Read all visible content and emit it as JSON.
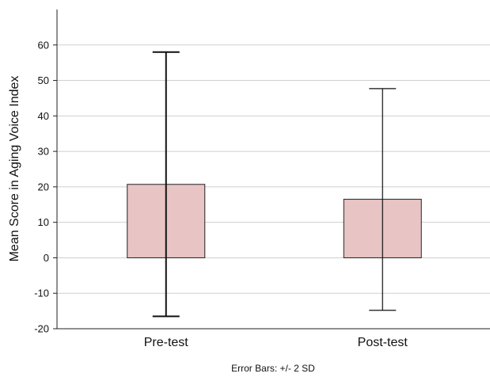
{
  "chart_data": {
    "type": "bar",
    "categories": [
      "Pre-test",
      "Post-test"
    ],
    "values": [
      20.7,
      16.5
    ],
    "error_low": [
      -16.5,
      -14.8
    ],
    "error_high": [
      58.0,
      47.7
    ],
    "ylabel": "Mean Score in Aging Voice Index",
    "xlabel": "",
    "ylim": [
      -20,
      70
    ],
    "yticks": [
      -20,
      -10,
      0,
      10,
      20,
      30,
      40,
      50,
      60
    ],
    "ytick_labels": [
      "-20",
      "-10",
      "0",
      "10",
      "20",
      "30",
      "40",
      "50",
      "60"
    ],
    "grid": true,
    "footnote": "Error Bars: +/- 2 SD",
    "colors": {
      "bar_fill": "#e8c4c4",
      "bar_stroke": "#222222",
      "grid": "#cfcfcf"
    }
  }
}
